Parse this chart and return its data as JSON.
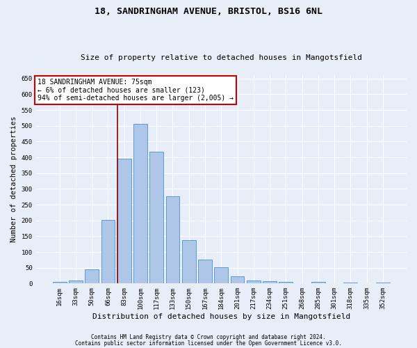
{
  "title1": "18, SANDRINGHAM AVENUE, BRISTOL, BS16 6NL",
  "title2": "Size of property relative to detached houses in Mangotsfield",
  "xlabel": "Distribution of detached houses by size in Mangotsfield",
  "ylabel": "Number of detached properties",
  "categories": [
    "16sqm",
    "33sqm",
    "50sqm",
    "66sqm",
    "83sqm",
    "100sqm",
    "117sqm",
    "133sqm",
    "150sqm",
    "167sqm",
    "184sqm",
    "201sqm",
    "217sqm",
    "234sqm",
    "251sqm",
    "268sqm",
    "285sqm",
    "301sqm",
    "318sqm",
    "335sqm",
    "352sqm"
  ],
  "values": [
    5,
    10,
    45,
    202,
    395,
    505,
    418,
    277,
    138,
    75,
    52,
    23,
    10,
    7,
    5,
    0,
    5,
    0,
    3,
    0,
    2
  ],
  "bar_color": "#aec6e8",
  "bar_edge_color": "#5b9bd5",
  "vline_pos": 3.575,
  "annotation_text": "18 SANDRINGHAM AVENUE: 75sqm\n← 6% of detached houses are smaller (123)\n94% of semi-detached houses are larger (2,005) →",
  "annotation_box_color": "white",
  "annotation_box_edge_color": "#cc0000",
  "vline_color": "#8b0000",
  "ylim": [
    0,
    660
  ],
  "yticks": [
    0,
    50,
    100,
    150,
    200,
    250,
    300,
    350,
    400,
    450,
    500,
    550,
    600,
    650
  ],
  "footer1": "Contains HM Land Registry data © Crown copyright and database right 2024.",
  "footer2": "Contains public sector information licensed under the Open Government Licence v3.0.",
  "bg_color": "#e8eef8",
  "plot_bg_color": "#e8eef8",
  "title1_fontsize": 9.5,
  "title2_fontsize": 8,
  "ylabel_fontsize": 7.5,
  "xlabel_fontsize": 8,
  "tick_fontsize": 6.5,
  "annot_fontsize": 7,
  "footer_fontsize": 5.5
}
